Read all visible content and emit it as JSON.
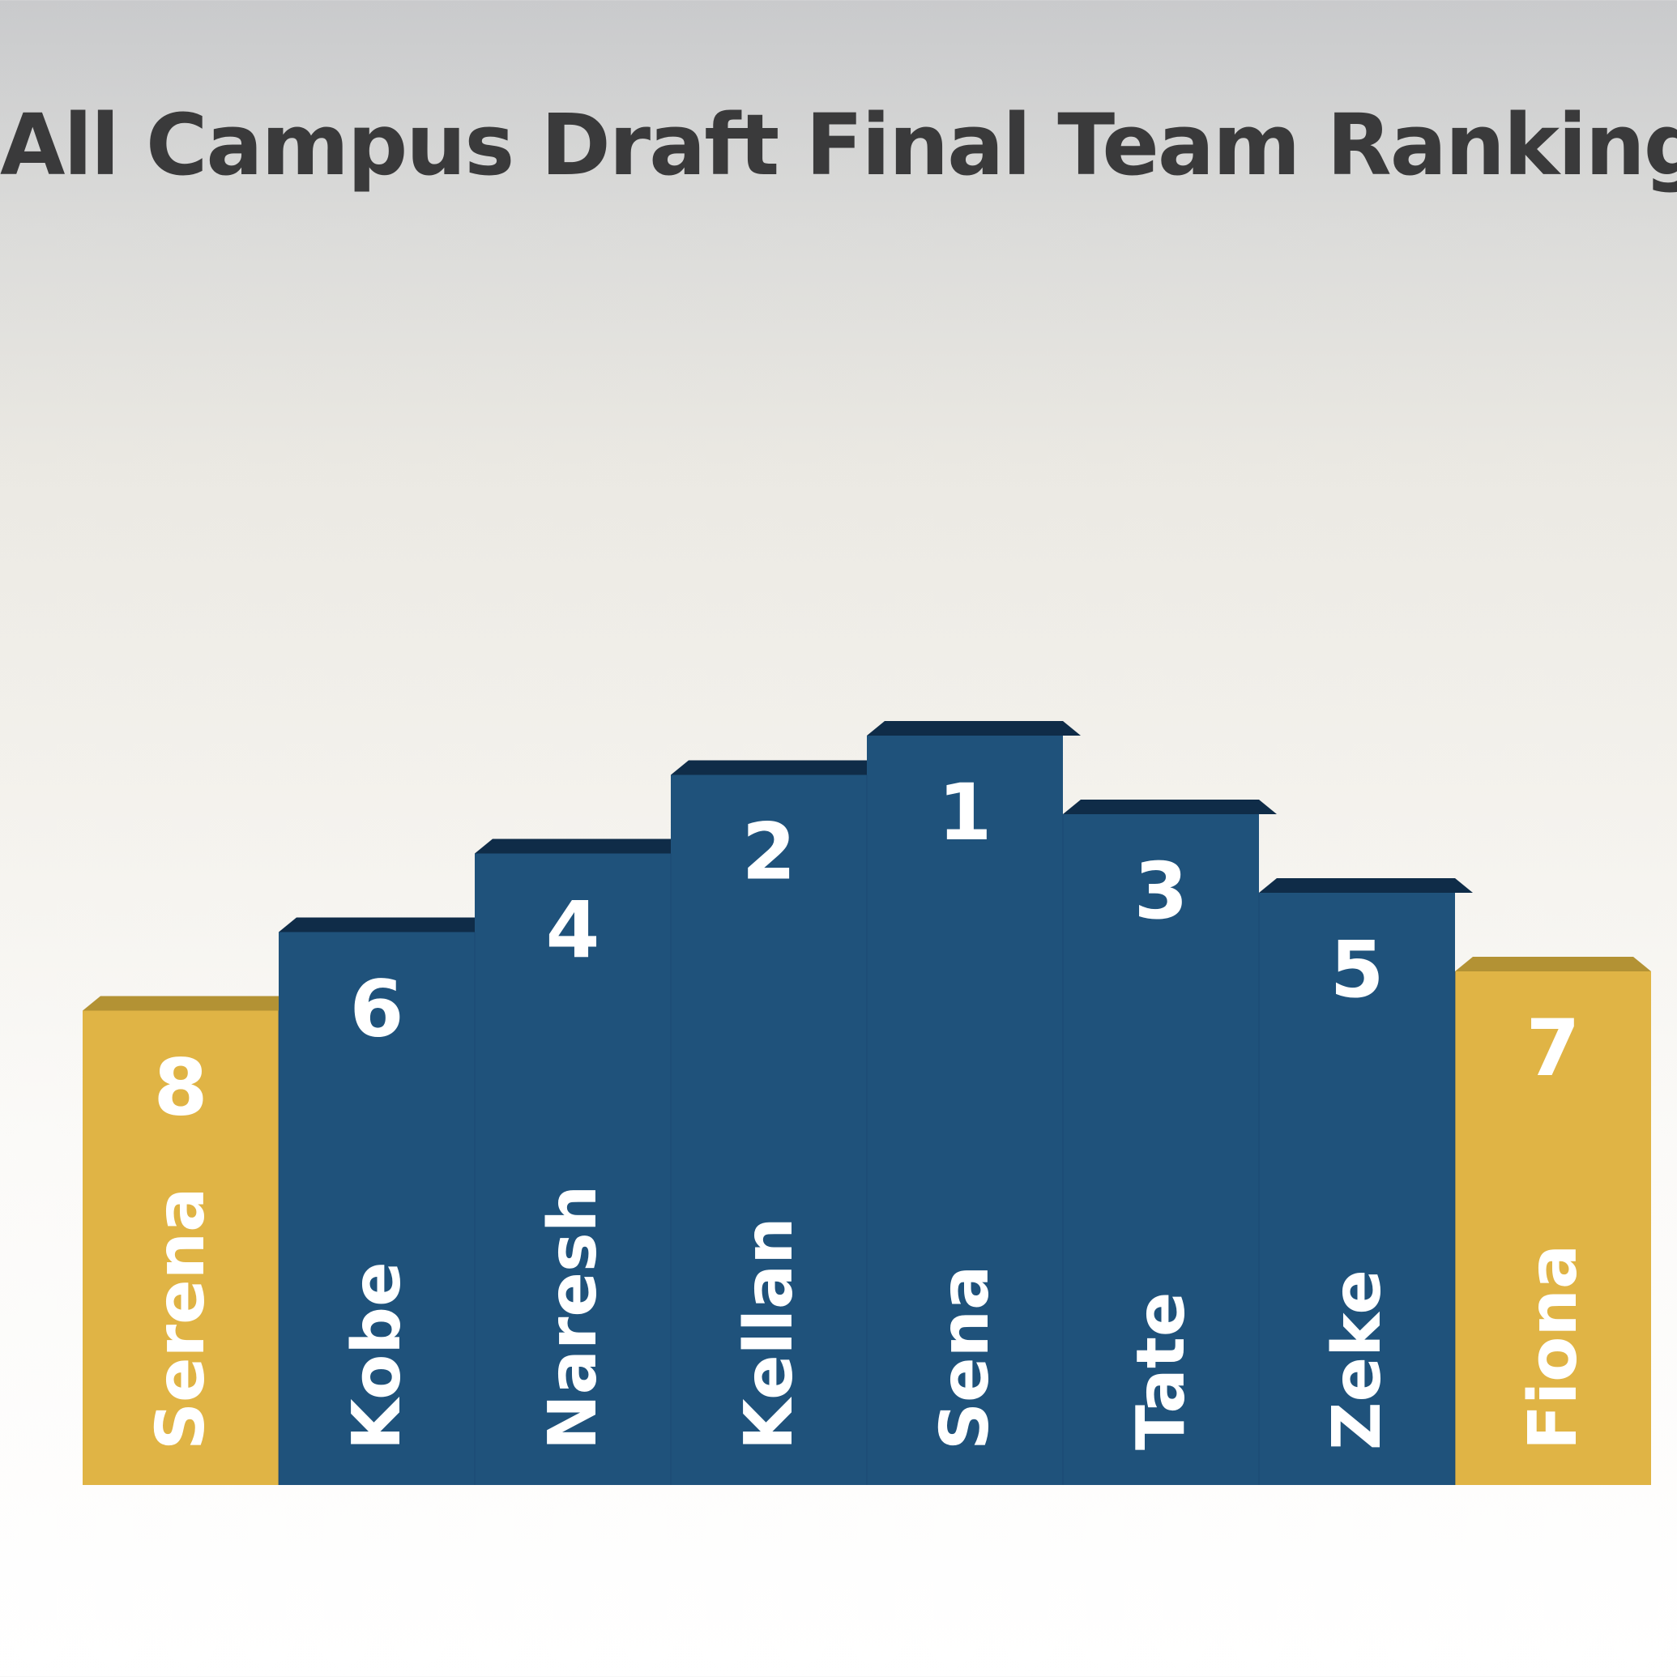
{
  "title": "All Campus Draft Final Team Rankings",
  "colors": {
    "blue_front": "#1f527b",
    "blue_top": "#0f2c48",
    "gold_front": "#e0b445",
    "gold_top": "#b39234",
    "text": "#ffffff",
    "title": "#3a3a3b"
  },
  "chart_data": {
    "type": "bar",
    "title": "All Campus Draft Final Team Rankings",
    "categories": [
      "Serena",
      "Kobe",
      "Naresh",
      "Kellan",
      "Sena",
      "Tate",
      "Zeke",
      "Fiona"
    ],
    "values": [
      8,
      6,
      4,
      2,
      1,
      3,
      5,
      7
    ],
    "labels": [
      "8",
      "6",
      "4",
      "2",
      "1",
      "3",
      "5",
      "7"
    ],
    "highlight": [
      "gold",
      "blue",
      "blue",
      "blue",
      "blue",
      "blue",
      "blue",
      "gold"
    ],
    "xlabel": "",
    "ylabel": "",
    "grid": false,
    "legend": "none"
  }
}
